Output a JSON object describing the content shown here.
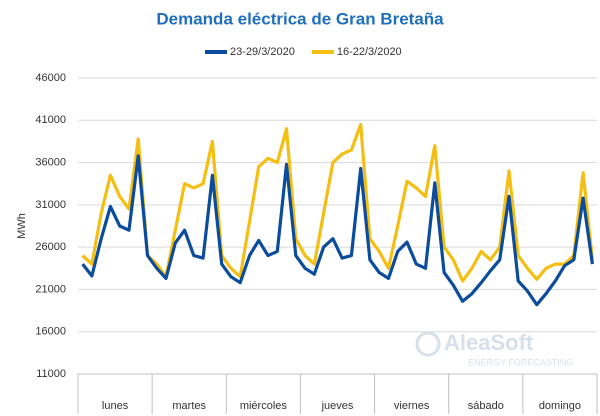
{
  "chart_data": {
    "type": "line",
    "title": "Demanda eléctrica de Gran Bretaña",
    "y_label": "MWh",
    "watermark": {
      "name": "AleaSoft",
      "tagline": "ENERGY FORECASTING"
    },
    "categories": [
      null,
      null,
      null,
      null,
      "lunes",
      null,
      null,
      null,
      null,
      null,
      null,
      null,
      "martes",
      null,
      null,
      null,
      null,
      null,
      null,
      null,
      "miércoles",
      null,
      null,
      null,
      null,
      null,
      null,
      null,
      "jueves",
      null,
      null,
      null,
      null,
      null,
      null,
      null,
      "viernes",
      null,
      null,
      null,
      null,
      null,
      null,
      null,
      "sábado",
      null,
      null,
      null,
      null,
      null,
      null,
      null,
      "domingo",
      null,
      null,
      null
    ],
    "series": [
      {
        "name": "23-29/3/2020",
        "color": "#0b4c9c",
        "values": [
          24000,
          22600,
          27000,
          30800,
          28500,
          28000,
          36800,
          25000,
          23500,
          22300,
          26500,
          28000,
          25000,
          24700,
          34500,
          24000,
          22500,
          21800,
          25000,
          26800,
          25000,
          25500,
          35800,
          25000,
          23500,
          22800,
          26000,
          27000,
          24700,
          25000,
          35300,
          24500,
          23000,
          22300,
          25500,
          26600,
          24000,
          23500,
          33600,
          23000,
          21500,
          19600,
          20500,
          21800,
          23200,
          24500,
          32000,
          22000,
          20800,
          19200,
          20500,
          22000,
          23800,
          24500,
          31800,
          24000
        ]
      },
      {
        "name": "16-22/3/2020",
        "color": "#f4be12",
        "values": [
          25000,
          24000,
          30000,
          34500,
          32000,
          30500,
          38800,
          25000,
          24000,
          22500,
          28000,
          33500,
          33000,
          33500,
          38500,
          25000,
          23500,
          22500,
          29000,
          35500,
          36500,
          36000,
          40000,
          27000,
          25000,
          24000,
          30000,
          36000,
          37000,
          37500,
          40500,
          27000,
          25500,
          23500,
          28500,
          33800,
          33000,
          32000,
          38000,
          26000,
          24500,
          22000,
          23500,
          25500,
          24500,
          26000,
          35000,
          25000,
          23500,
          22200,
          23500,
          24000,
          24000,
          25000,
          34800,
          24500
        ]
      }
    ],
    "ylim": [
      11000,
      46000
    ],
    "yticks": [
      11000,
      16000,
      21000,
      26000,
      31000,
      36000,
      41000,
      46000
    ],
    "grid": true
  }
}
